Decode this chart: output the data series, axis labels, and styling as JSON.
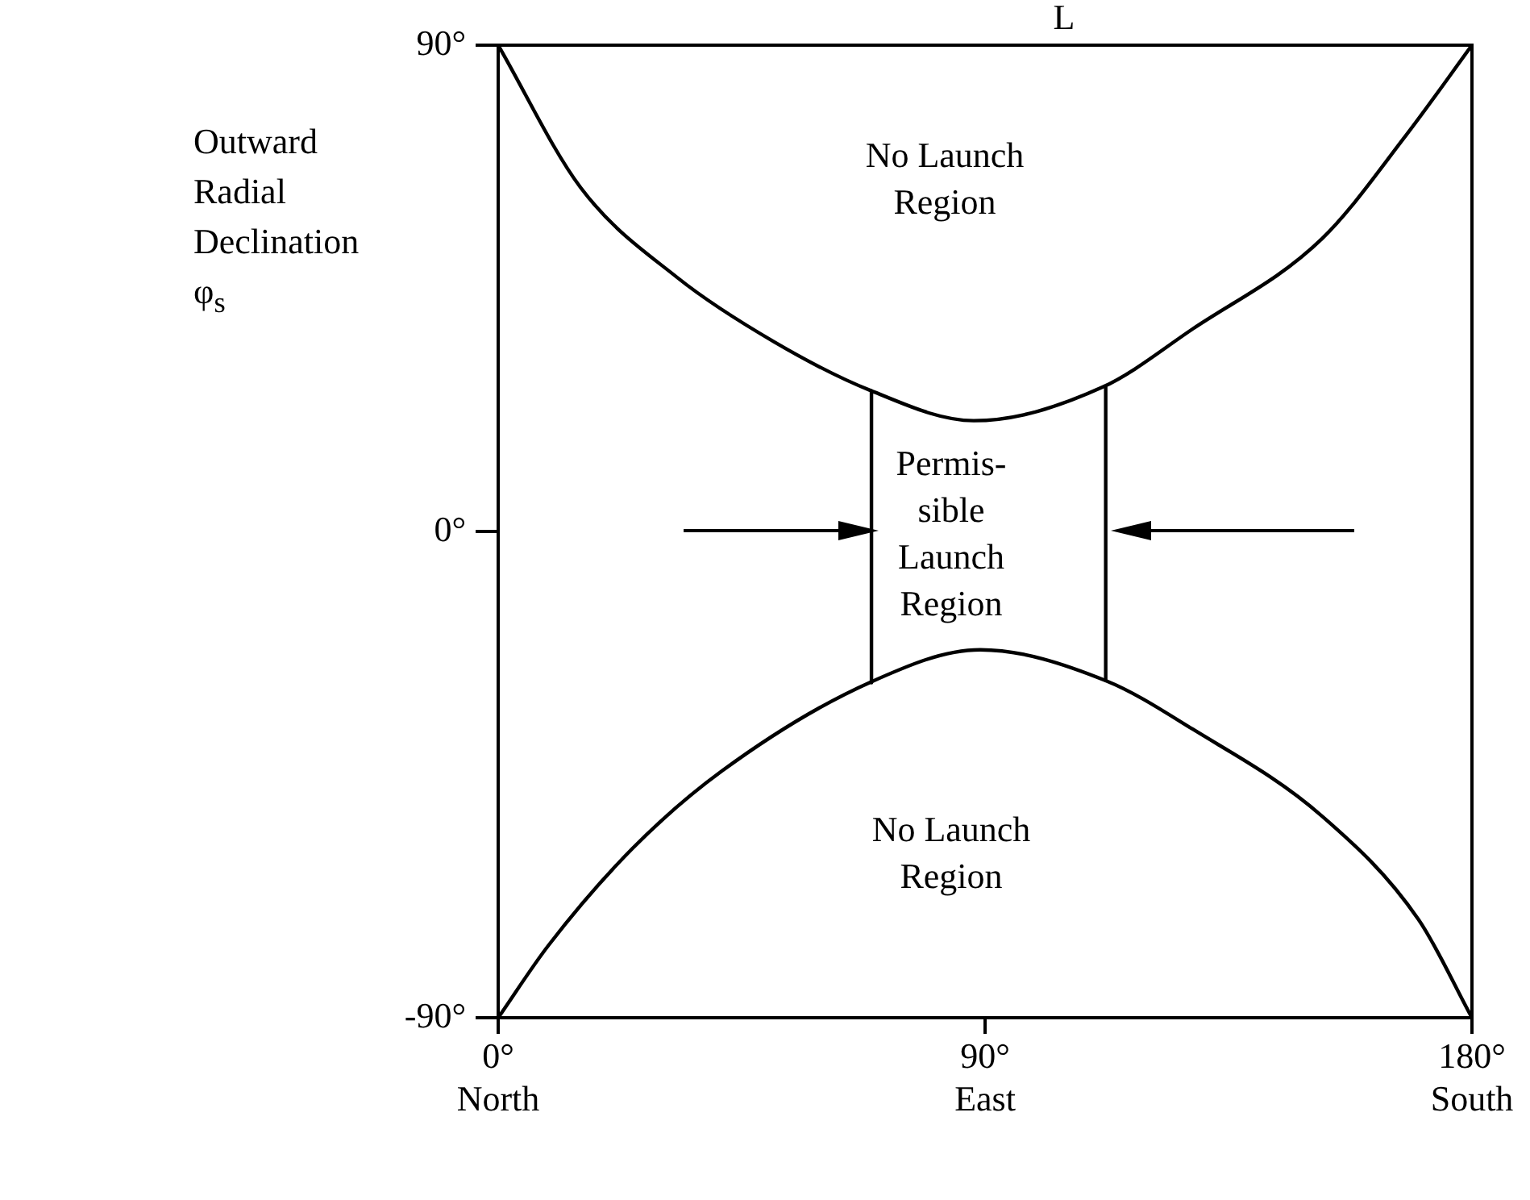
{
  "chart_data": {
    "type": "line",
    "ylabel": "Outward\nRadial\nDeclination\nφ$_{s}$",
    "xlim": [
      0,
      180
    ],
    "ylim": [
      -90,
      90
    ],
    "xticks": [
      {
        "value": 0,
        "label": "0°\nNorth"
      },
      {
        "value": 90,
        "label": "90°\nEast"
      },
      {
        "value": 180,
        "label": "180°\nSouth"
      }
    ],
    "yticks": [
      {
        "value": -90,
        "label": "-90°"
      },
      {
        "value": 0,
        "label": "0°"
      },
      {
        "value": 90,
        "label": "90°"
      }
    ],
    "grid": false,
    "legend": false,
    "marker": "none",
    "line_style": "solid",
    "series": [
      {
        "color": "#000000",
        "x": [
          0,
          15.2,
          33.1,
          51,
          68.8,
          87.9,
          111.7,
          128.4,
          152.3,
          167.8,
          180
        ],
        "values": [
          90,
          63.7,
          47,
          35.1,
          26.1,
          20.5,
          26.7,
          37.5,
          54.2,
          73.3,
          90
        ]
      },
      {
        "color": "#000000",
        "x": [
          0,
          9.3,
          24.8,
          41.4,
          68.8,
          89.1,
          112.3,
          128.4,
          152.3,
          170.1,
          180
        ],
        "values": [
          -90,
          -76.6,
          -58.7,
          -44.3,
          -27.9,
          -21.9,
          -27.6,
          -36.6,
          -52.7,
          -71.8,
          -90
        ]
      },
      {
        "color": "#000000",
        "x": [
          69,
          69
        ],
        "values": [
          -28,
          26
        ]
      },
      {
        "color": "#000000",
        "x": [
          112.3,
          112.3
        ],
        "values": [
          -27.6,
          26.7
        ]
      }
    ],
    "annotations": [
      "L",
      "No Launch\nRegion",
      "Permis-\nsible\nLaunch\nRegion",
      "No Launch\nRegion"
    ]
  }
}
